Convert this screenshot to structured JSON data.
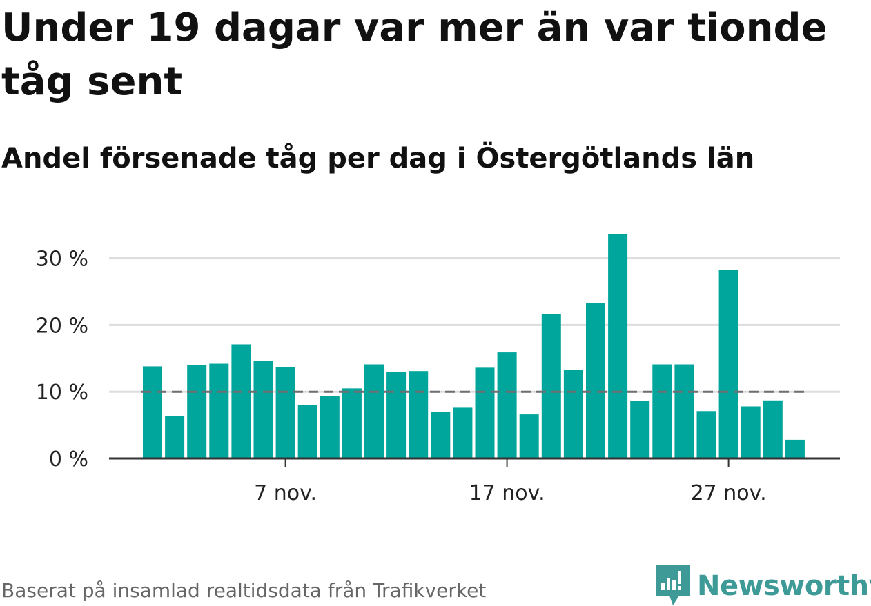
{
  "title": "Under 19 dagar var mer än var tionde tåg sent",
  "subtitle": "Andel försenade tåg per dag i Östergötlands län",
  "source": "Baserat på insamlad realtidsdata från Trafikverket",
  "brand": {
    "name": "Newsworthy"
  },
  "colors": {
    "bar": "#00a59b",
    "grid": "#dddddd",
    "axis": "#333333",
    "reference": "#6e6e73",
    "brand": "#3d9a96"
  },
  "chart_data": {
    "type": "bar",
    "title": "Under 19 dagar var mer än var tionde tåg sent",
    "subtitle": "Andel försenade tåg per dag i Östergötlands län",
    "xlabel": "",
    "ylabel": "",
    "categories": [
      "1 nov.",
      "2 nov.",
      "3 nov.",
      "4 nov.",
      "5 nov.",
      "6 nov.",
      "7 nov.",
      "8 nov.",
      "9 nov.",
      "10 nov.",
      "11 nov.",
      "12 nov.",
      "13 nov.",
      "14 nov.",
      "15 nov.",
      "16 nov.",
      "17 nov.",
      "18 nov.",
      "19 nov.",
      "20 nov.",
      "21 nov.",
      "22 nov.",
      "23 nov.",
      "24 nov.",
      "25 nov.",
      "26 nov.",
      "27 nov.",
      "28 nov.",
      "29 nov.",
      "30 nov."
    ],
    "values": [
      13.8,
      6.3,
      14.0,
      14.2,
      17.1,
      14.6,
      13.7,
      8.0,
      9.3,
      10.5,
      14.1,
      13.0,
      13.1,
      7.0,
      7.6,
      13.6,
      15.9,
      6.6,
      21.6,
      13.3,
      23.3,
      33.6,
      8.6,
      14.1,
      14.1,
      7.1,
      28.3,
      7.8,
      8.7,
      2.8
    ],
    "ylim": [
      0,
      35
    ],
    "yticks": [
      0,
      10,
      20,
      30
    ],
    "ytick_labels": [
      "0 %",
      "10 %",
      "20 %",
      "30 %"
    ],
    "xticks": [
      "7 nov.",
      "17 nov.",
      "27 nov."
    ],
    "reference_line": 10,
    "grid": true,
    "legend": "none"
  }
}
